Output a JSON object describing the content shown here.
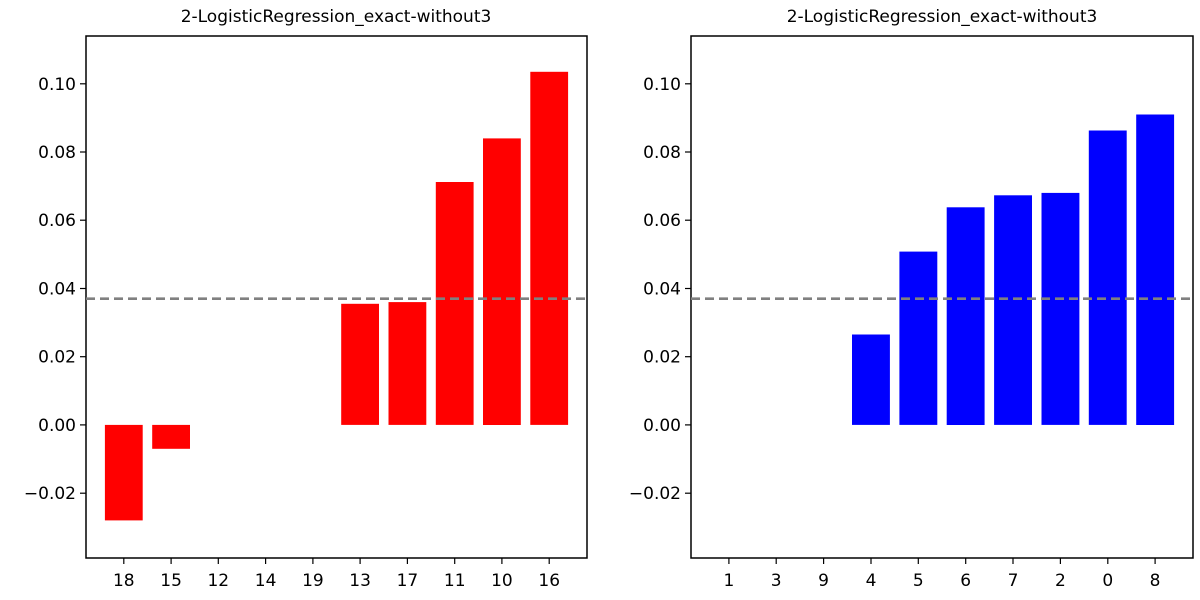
{
  "chart_data": [
    {
      "type": "bar",
      "title": "2-LogisticRegression_exact-without3",
      "xlabel": "",
      "ylabel": "",
      "categories": [
        "18",
        "15",
        "12",
        "14",
        "19",
        "13",
        "17",
        "11",
        "10",
        "16"
      ],
      "values": [
        -0.028,
        -0.007,
        0,
        0,
        0,
        0.0355,
        0.036,
        0.0712,
        0.084,
        0.1035
      ],
      "bar_color": "#ff0000",
      "reference_line": 0.037,
      "reference_color": "#808080",
      "ylim": [
        -0.039,
        0.114
      ],
      "yticks": [
        -0.02,
        0.0,
        0.02,
        0.04,
        0.06,
        0.08,
        0.1
      ],
      "ytick_labels": [
        "−0.02",
        "0.00",
        "0.02",
        "0.04",
        "0.06",
        "0.08",
        "0.10"
      ],
      "grid": false
    },
    {
      "type": "bar",
      "title": "2-LogisticRegression_exact-without3",
      "xlabel": "",
      "ylabel": "",
      "categories": [
        "1",
        "3",
        "9",
        "4",
        "5",
        "6",
        "7",
        "2",
        "0",
        "8"
      ],
      "values": [
        0,
        0,
        0,
        0.0265,
        0.0508,
        0.0638,
        0.0673,
        0.068,
        0.0863,
        0.091
      ],
      "bar_color": "#0000ff",
      "reference_line": 0.037,
      "reference_color": "#808080",
      "ylim": [
        -0.039,
        0.114
      ],
      "yticks": [
        -0.02,
        0.0,
        0.02,
        0.04,
        0.06,
        0.08,
        0.1
      ],
      "ytick_labels": [
        "−0.02",
        "0.00",
        "0.02",
        "0.04",
        "0.06",
        "0.08",
        "0.10"
      ],
      "grid": false
    }
  ]
}
